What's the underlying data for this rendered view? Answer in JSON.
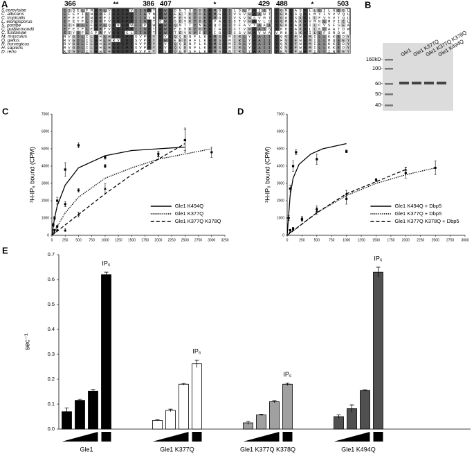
{
  "alignment": {
    "panel": "A",
    "blocks": [
      {
        "start": 366,
        "end": 386,
        "marker": "**"
      },
      {
        "start": 407,
        "end": 429,
        "marker": "*"
      },
      {
        "start": 488,
        "end": 503,
        "marker": "*"
      }
    ],
    "species": [
      "S.cerevisiae",
      "C. albicans",
      "C. tropicalis",
      "L. elongisporus",
      "S. pombe",
      "C. guilliermondii",
      "C. lusitaniae",
      "M. musculus",
      "G. gallus",
      "R. norvegicus",
      "H. sapiens",
      "D. rerio"
    ],
    "sequences": [
      [
        "EIQELFMARLVKKCPVIIGFT",
        "KWEDNTSYDERMGGILSLFAIIT",
        "YGNQASKLLLILGEEL"
      ],
      [
        "EFEYILNARFIKKCPYIIGYN",
        "KWEEETKYDERMGGIVSVWAAWT",
        "YGNQSQKLMYIVVVQL"
      ],
      [
        "EFEYFLNARFIKKCPYIIGYN",
        "KWEEEVKYDERMGGIVSVWSVMT",
        "YGGQSKKLLFVVVTQL"
      ],
      [
        "EFEYFLSARFVKKCPYIIGFT",
        "DWEGEVKYDERVAGICTVWAVLS",
        "YGRQAKKVMKLMVIEL"
      ],
      [
        "EIKDLLFARLQKNCPWIIPFW",
        "KWEQNTTYNERQCGICFAVYAAI",
        "YGRQAKKILCVSFSEA"
      ],
      [
        "EFEYFLEARFVKKCPYIIGFT",
        "KWEEDSKYDERIAGICTVWAAIS",
        "YKDQAKKLLKLAATDW"
      ],
      [
        "EIYDFLCPRFVKKCCLIIGFT",
        "KWETEVKYEERIGGICSVWAVWA",
        "VRKQSKKILLFSRDW"
      ],
      [
        "RVGDLILAHLHKKCPYSVPFY",
        "KVEQQDNFLKRMSGMIRLYAAII",
        "YQVQFWKMILLKKEDY"
      ],
      [
        "RVGDLILAHLHRVCPYSVPFY",
        "KWEEEDHFLKRMSGMIRLYAAII",
        "YHVQFWKMILLMQEEY"
      ],
      [
        "RVGDLILAHLHKKCPYSVPFY",
        "KVEQQDNFLKRMSGMIRLYAAII",
        "YQVQFWKMILLKKEDY"
      ],
      [
        "RVGDLILAHLHKKCPYSVPFY",
        "KVEQQDNFLKRMSGMIRLYAAII",
        "YQVQFWKMILLKKEDY"
      ],
      [
        "KIGDLILAHLHKKCPYAVPHY",
        "KVEQGDSFLKRMSGMIRLYAAII",
        "YRVQFWKMILLINEEY"
      ]
    ]
  },
  "gel": {
    "panel": "B",
    "lanes": [
      "Gle1",
      "Gle1 K377Q",
      "Gle1 K377Q K378Q",
      "Gle1 K494Q"
    ],
    "markers": [
      "160kD-",
      "100-",
      "60-",
      "50-",
      "40-"
    ]
  },
  "chart_data": [
    {
      "type": "scatter",
      "panel": "C",
      "y_label": "³H-IP₆ bound (CPM)",
      "legend": "lower right",
      "xlim": [
        0,
        3250
      ],
      "xticks": [
        0,
        250,
        500,
        750,
        1000,
        1250,
        1500,
        1750,
        2000,
        2250,
        2500,
        2750,
        3000,
        3250
      ],
      "ylim": [
        0,
        7000
      ],
      "yticks": [
        0,
        1000,
        2000,
        3000,
        4000,
        5000,
        6000,
        7000
      ],
      "series": [
        {
          "name": "Gle1 K494Q",
          "style": "solid",
          "marker": "square",
          "x": [
            25,
            50,
            100,
            250,
            500,
            1000,
            2500
          ],
          "values": [
            600,
            1000,
            2000,
            3800,
            5200,
            4500,
            5500
          ],
          "errors": [
            100,
            100,
            200,
            400,
            150,
            100,
            700
          ],
          "fit_x": [
            0,
            50,
            100,
            250,
            500,
            1000,
            1500,
            2000,
            2500
          ],
          "fit_values": [
            0,
            1000,
            1700,
            2900,
            3900,
            4600,
            4900,
            5000,
            5100
          ]
        },
        {
          "name": "Gle1 K377Q",
          "style": "dotted",
          "marker": "circle",
          "x": [
            50,
            100,
            250,
            500,
            1000,
            2000,
            3000
          ],
          "values": [
            300,
            500,
            1800,
            2600,
            4000,
            4700,
            4800
          ],
          "errors": [
            50,
            80,
            150,
            100,
            100,
            150,
            300
          ],
          "fit_x": [
            0,
            250,
            500,
            1000,
            1500,
            2000,
            2500,
            3000
          ],
          "fit_values": [
            0,
            1300,
            2200,
            3300,
            3900,
            4400,
            4700,
            5000
          ]
        },
        {
          "name": "Gle1 K377Q K378Q",
          "style": "dashed",
          "marker": "triangle",
          "x": [
            50,
            100,
            250,
            500,
            1000,
            2000,
            2500
          ],
          "values": [
            200,
            300,
            300,
            1200,
            2700,
            4600,
            5500
          ],
          "errors": [
            50,
            50,
            80,
            150,
            300,
            200,
            600
          ],
          "fit_x": [
            0,
            250,
            500,
            1000,
            1500,
            2000,
            2500
          ],
          "fit_values": [
            0,
            600,
            1200,
            2400,
            3500,
            4400,
            5300
          ]
        }
      ]
    },
    {
      "type": "scatter",
      "panel": "D",
      "y_label": "³H-IP₆ bound (CPM)",
      "legend": "lower right",
      "xlim": [
        0,
        3000
      ],
      "xticks": [
        0,
        250,
        500,
        750,
        1000,
        1250,
        1500,
        1750,
        2000,
        2250,
        2500,
        2750,
        3000
      ],
      "ylim": [
        0,
        7000
      ],
      "yticks": [
        0,
        1000,
        2000,
        3000,
        4000,
        5000,
        6000,
        7000
      ],
      "series": [
        {
          "name": "Gle1 K494Q + Dbp5",
          "style": "solid",
          "marker": "square",
          "x": [
            25,
            50,
            100,
            150,
            500,
            1000
          ],
          "values": [
            1000,
            2700,
            4000,
            4800,
            4400,
            4850
          ],
          "errors": [
            150,
            200,
            300,
            150,
            300,
            80
          ],
          "fit_x": [
            0,
            50,
            100,
            200,
            400,
            600,
            1000
          ],
          "fit_values": [
            0,
            2300,
            3300,
            4100,
            4700,
            5000,
            5300
          ]
        },
        {
          "name": "Gle1 K377Q + Dbp5",
          "style": "dotted",
          "marker": "circle",
          "x": [
            50,
            100,
            250,
            500,
            1000,
            1500,
            2000,
            2500
          ],
          "values": [
            300,
            400,
            900,
            1500,
            2100,
            3200,
            3600,
            3900
          ],
          "errors": [
            50,
            60,
            100,
            200,
            300,
            100,
            300,
            400
          ],
          "fit_x": [
            0,
            500,
            1000,
            1500,
            2000,
            2500
          ],
          "fit_values": [
            0,
            1300,
            2300,
            3000,
            3500,
            3900
          ]
        },
        {
          "name": "Gle1 K377Q K378Q + Dbp5",
          "style": "dashed",
          "marker": "triangle",
          "x": [
            50,
            100,
            250,
            500,
            1000,
            2000
          ],
          "values": [
            200,
            350,
            1000,
            1400,
            2400,
            3800
          ],
          "errors": [
            50,
            50,
            100,
            200,
            200,
            150
          ],
          "fit_x": [
            0,
            500,
            1000,
            1500,
            2000
          ],
          "fit_values": [
            0,
            1300,
            2400,
            3100,
            3800
          ]
        }
      ]
    },
    {
      "type": "bar",
      "panel": "E",
      "y_label": "sec⁻¹",
      "annotation": "IP₆",
      "ylim": [
        0,
        0.7
      ],
      "yticks": [
        {
          "value": 0,
          "label": "0.0"
        },
        0.1,
        0.2,
        0.3,
        0.4,
        0.5,
        0.6,
        0.7
      ],
      "series": [
        {
          "name": "Gle1",
          "color": "#000000",
          "values": [
            0.07,
            0.115,
            0.152,
            0.62
          ],
          "errors": [
            0.015,
            0.004,
            0.007,
            0.01
          ]
        },
        {
          "name": "Gle1 K377Q",
          "color": "#ffffff",
          "values": [
            0.035,
            0.075,
            0.18,
            0.262
          ],
          "errors": [
            0.002,
            0.005,
            0.003,
            0.015
          ]
        },
        {
          "name": "Gle1 K377Q K378Q",
          "color": "#a0a0a0",
          "values": [
            0.025,
            0.057,
            0.11,
            0.18
          ],
          "errors": [
            0.007,
            0.003,
            0.004,
            0.005
          ]
        },
        {
          "name": "Gle1 K494Q",
          "color": "#505050",
          "values": [
            0.05,
            0.082,
            0.155,
            0.63
          ],
          "errors": [
            0.007,
            0.015,
            0.003,
            0.02
          ]
        }
      ]
    }
  ]
}
